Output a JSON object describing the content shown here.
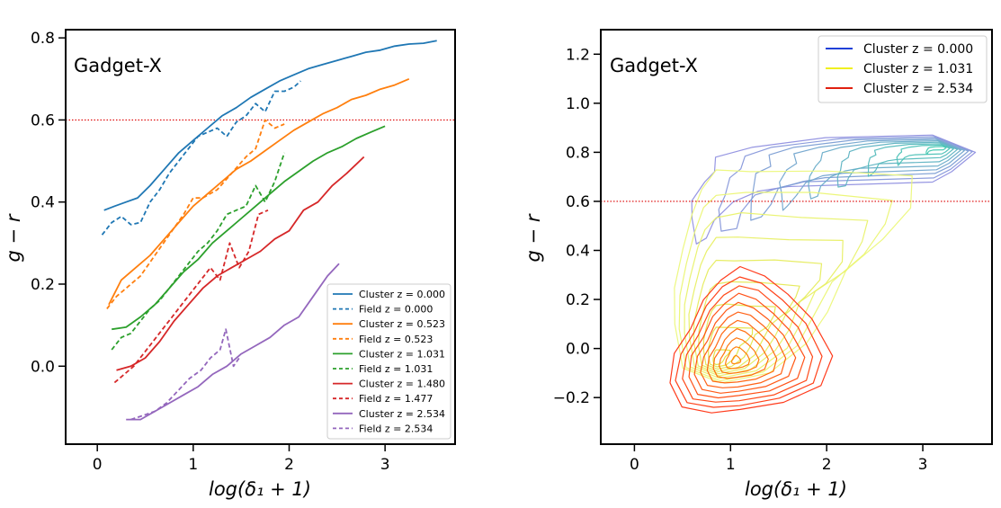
{
  "figure": {
    "panels": [
      {
        "panel_label": "Gadget-X",
        "xlabel": "log(δ₁ + 1)",
        "ylabel": "g − r"
      },
      {
        "panel_label": "Gadget-X",
        "xlabel": "log(δ₁ + 1)",
        "ylabel": "g − r"
      }
    ]
  },
  "chart_data": [
    {
      "type": "line",
      "title": "Gadget-X",
      "xlabel": "log(δ₁ + 1)",
      "ylabel": "g − r",
      "xlim": [
        -0.33,
        3.73
      ],
      "ylim": [
        -0.19,
        0.82
      ],
      "xticks": [
        0,
        1,
        2,
        3
      ],
      "yticks": [
        0.0,
        0.2,
        0.4,
        0.6,
        0.8
      ],
      "ytick_labels": [
        "0.0",
        "0.2",
        "0.4",
        "0.6",
        "0.8"
      ],
      "reference_line": {
        "y": 0.6,
        "color": "#dd0000",
        "style": "dotted"
      },
      "legend_position": "lower-right",
      "series": [
        {
          "name": "Cluster z = 0.000",
          "color": "#1f77b4",
          "dash": "solid",
          "x": [
            0.07,
            0.18,
            0.3,
            0.42,
            0.55,
            0.7,
            0.85,
            1.0,
            1.15,
            1.3,
            1.45,
            1.6,
            1.75,
            1.9,
            2.05,
            2.2,
            2.35,
            2.5,
            2.65,
            2.8,
            2.95,
            3.1,
            3.25,
            3.4,
            3.54
          ],
          "y": [
            0.38,
            0.39,
            0.4,
            0.41,
            0.44,
            0.48,
            0.52,
            0.55,
            0.58,
            0.61,
            0.63,
            0.655,
            0.675,
            0.695,
            0.71,
            0.725,
            0.735,
            0.745,
            0.755,
            0.765,
            0.77,
            0.78,
            0.785,
            0.787,
            0.793
          ]
        },
        {
          "name": "Field z = 0.000",
          "color": "#1f77b4",
          "dash": "dashed",
          "x": [
            0.05,
            0.15,
            0.25,
            0.35,
            0.45,
            0.55,
            0.65,
            0.75,
            0.85,
            0.95,
            1.05,
            1.15,
            1.25,
            1.35,
            1.45,
            1.55,
            1.65,
            1.75,
            1.85,
            1.95,
            2.05,
            2.12
          ],
          "y": [
            0.32,
            0.35,
            0.365,
            0.345,
            0.35,
            0.4,
            0.43,
            0.47,
            0.5,
            0.53,
            0.56,
            0.57,
            0.58,
            0.56,
            0.595,
            0.61,
            0.64,
            0.62,
            0.67,
            0.67,
            0.68,
            0.695
          ]
        },
        {
          "name": "Cluster z = 0.523",
          "color": "#ff7f0e",
          "dash": "solid",
          "x": [
            0.12,
            0.25,
            0.4,
            0.55,
            0.7,
            0.85,
            1.0,
            1.15,
            1.3,
            1.45,
            1.6,
            1.75,
            1.9,
            2.05,
            2.2,
            2.35,
            2.5,
            2.65,
            2.8,
            2.95,
            3.1,
            3.25
          ],
          "y": [
            0.15,
            0.21,
            0.24,
            0.27,
            0.31,
            0.35,
            0.39,
            0.42,
            0.45,
            0.48,
            0.5,
            0.525,
            0.55,
            0.575,
            0.595,
            0.615,
            0.63,
            0.65,
            0.66,
            0.675,
            0.685,
            0.7
          ]
        },
        {
          "name": "Field z = 0.523",
          "color": "#ff7f0e",
          "dash": "dashed",
          "x": [
            0.1,
            0.2,
            0.3,
            0.45,
            0.6,
            0.75,
            0.9,
            1.0,
            1.1,
            1.25,
            1.4,
            1.55,
            1.65,
            1.75,
            1.85,
            1.95
          ],
          "y": [
            0.14,
            0.17,
            0.19,
            0.22,
            0.27,
            0.32,
            0.37,
            0.41,
            0.41,
            0.43,
            0.47,
            0.51,
            0.53,
            0.6,
            0.58,
            0.59
          ]
        },
        {
          "name": "Cluster z = 1.031",
          "color": "#2ca02c",
          "dash": "solid",
          "x": [
            0.15,
            0.3,
            0.45,
            0.6,
            0.75,
            0.9,
            1.05,
            1.2,
            1.35,
            1.5,
            1.65,
            1.8,
            1.95,
            2.1,
            2.25,
            2.4,
            2.55,
            2.7,
            2.85,
            3.0
          ],
          "y": [
            0.09,
            0.095,
            0.12,
            0.15,
            0.19,
            0.23,
            0.26,
            0.3,
            0.33,
            0.36,
            0.39,
            0.42,
            0.45,
            0.475,
            0.5,
            0.52,
            0.535,
            0.555,
            0.57,
            0.585
          ]
        },
        {
          "name": "Field z = 1.031",
          "color": "#2ca02c",
          "dash": "dashed",
          "x": [
            0.15,
            0.25,
            0.35,
            0.45,
            0.55,
            0.65,
            0.75,
            0.85,
            0.95,
            1.05,
            1.15,
            1.25,
            1.35,
            1.45,
            1.55,
            1.65,
            1.75,
            1.85,
            1.95
          ],
          "y": [
            0.04,
            0.07,
            0.08,
            0.11,
            0.14,
            0.16,
            0.19,
            0.22,
            0.25,
            0.28,
            0.3,
            0.33,
            0.37,
            0.38,
            0.39,
            0.44,
            0.4,
            0.45,
            0.52
          ]
        },
        {
          "name": "Cluster z = 1.480",
          "color": "#d62728",
          "dash": "solid",
          "x": [
            0.2,
            0.35,
            0.5,
            0.65,
            0.8,
            0.95,
            1.1,
            1.25,
            1.4,
            1.55,
            1.7,
            1.85,
            2.0,
            2.15,
            2.3,
            2.45,
            2.6,
            2.78
          ],
          "y": [
            -0.01,
            0.0,
            0.02,
            0.06,
            0.11,
            0.15,
            0.19,
            0.22,
            0.24,
            0.26,
            0.28,
            0.31,
            0.33,
            0.38,
            0.4,
            0.44,
            0.47,
            0.51
          ]
        },
        {
          "name": "Field z = 1.477",
          "color": "#d62728",
          "dash": "dashed",
          "x": [
            0.18,
            0.28,
            0.38,
            0.48,
            0.58,
            0.68,
            0.78,
            0.88,
            0.98,
            1.08,
            1.18,
            1.28,
            1.38,
            1.48,
            1.58,
            1.68,
            1.78
          ],
          "y": [
            -0.04,
            -0.02,
            0.0,
            0.03,
            0.06,
            0.09,
            0.12,
            0.15,
            0.18,
            0.21,
            0.24,
            0.21,
            0.3,
            0.24,
            0.28,
            0.37,
            0.38
          ]
        },
        {
          "name": "Cluster z = 2.534",
          "color": "#9467bd",
          "dash": "solid",
          "x": [
            0.3,
            0.45,
            0.6,
            0.75,
            0.9,
            1.05,
            1.2,
            1.35,
            1.5,
            1.65,
            1.8,
            1.95,
            2.1,
            2.25,
            2.4,
            2.52
          ],
          "y": [
            -0.13,
            -0.13,
            -0.11,
            -0.09,
            -0.07,
            -0.05,
            -0.02,
            0.0,
            0.03,
            0.05,
            0.07,
            0.1,
            0.12,
            0.17,
            0.22,
            0.25
          ]
        },
        {
          "name": "Field z = 2.534",
          "color": "#9467bd",
          "dash": "dashed",
          "x": [
            0.35,
            0.48,
            0.6,
            0.72,
            0.84,
            0.96,
            1.08,
            1.18,
            1.28,
            1.34,
            1.42,
            1.48
          ],
          "y": [
            -0.13,
            -0.12,
            -0.11,
            -0.09,
            -0.06,
            -0.03,
            -0.01,
            0.02,
            0.04,
            0.09,
            0.0,
            0.02
          ]
        }
      ]
    },
    {
      "type": "contour",
      "title": "Gadget-X",
      "xlabel": "log(δ₁ + 1)",
      "ylabel": "g − r",
      "xlim": [
        -0.35,
        3.72
      ],
      "ylim": [
        -0.39,
        1.3
      ],
      "xticks": [
        0,
        1,
        2,
        3
      ],
      "yticks": [
        -0.2,
        0.0,
        0.2,
        0.4,
        0.6,
        0.8,
        1.0,
        1.2
      ],
      "ytick_labels": [
        "−0.2",
        "0.0",
        "0.2",
        "0.4",
        "0.6",
        "0.8",
        "1.0",
        "1.2"
      ],
      "reference_line": {
        "y": 0.6,
        "color": "#dd0000",
        "style": "dotted"
      },
      "legend_position": "upper-right",
      "series": [
        {
          "name": "Cluster z = 0.000",
          "color": "#2040d8",
          "levels": 9,
          "outer_color": "#9090e0",
          "inner_color": "#40c8b0",
          "shape": [
            [
              0.6,
              0.53
            ],
            [
              0.62,
              0.6
            ],
            [
              0.7,
              0.68
            ],
            [
              0.85,
              0.72
            ],
            [
              0.85,
              0.78
            ],
            [
              1.2,
              0.82
            ],
            [
              2.0,
              0.86
            ],
            [
              3.1,
              0.87
            ],
            [
              3.55,
              0.8
            ],
            [
              3.3,
              0.72
            ],
            [
              3.1,
              0.68
            ],
            [
              1.6,
              0.66
            ],
            [
              1.3,
              0.64
            ],
            [
              1.0,
              0.6
            ],
            [
              0.85,
              0.52
            ],
            [
              0.75,
              0.45
            ],
            [
              0.62,
              0.43
            ]
          ],
          "peak": [
            3.22,
            0.82
          ]
        },
        {
          "name": "Cluster z = 1.031",
          "color": "#f0f020",
          "levels": 9,
          "outer_color": "#ecf87a",
          "inner_color": "#e0e040",
          "shape": [
            [
              0.42,
              0.1
            ],
            [
              0.42,
              0.25
            ],
            [
              0.5,
              0.4
            ],
            [
              0.6,
              0.55
            ],
            [
              0.7,
              0.65
            ],
            [
              0.85,
              0.72
            ],
            [
              1.2,
              0.73
            ],
            [
              2.0,
              0.72
            ],
            [
              2.9,
              0.7
            ],
            [
              2.85,
              0.58
            ],
            [
              2.6,
              0.44
            ],
            [
              2.2,
              0.32
            ],
            [
              2.0,
              0.15
            ],
            [
              1.8,
              0.02
            ],
            [
              1.4,
              -0.1
            ],
            [
              0.9,
              -0.14
            ],
            [
              0.5,
              -0.08
            ]
          ],
          "peak": [
            0.85,
            -0.06
          ]
        },
        {
          "name": "Cluster z = 2.534",
          "color": "#e02010",
          "levels": 11,
          "outer_color": "#ff3010",
          "inner_color": "#ff8000",
          "shape": [
            [
              0.37,
              -0.14
            ],
            [
              0.42,
              -0.02
            ],
            [
              0.58,
              0.08
            ],
            [
              0.72,
              0.2
            ],
            [
              0.9,
              0.28
            ],
            [
              1.1,
              0.33
            ],
            [
              1.35,
              0.3
            ],
            [
              1.6,
              0.22
            ],
            [
              1.85,
              0.12
            ],
            [
              2.05,
              -0.03
            ],
            [
              1.95,
              -0.15
            ],
            [
              1.55,
              -0.22
            ],
            [
              1.1,
              -0.25
            ],
            [
              0.8,
              -0.26
            ],
            [
              0.5,
              -0.24
            ]
          ],
          "peak": [
            1.05,
            -0.05
          ]
        }
      ]
    }
  ]
}
